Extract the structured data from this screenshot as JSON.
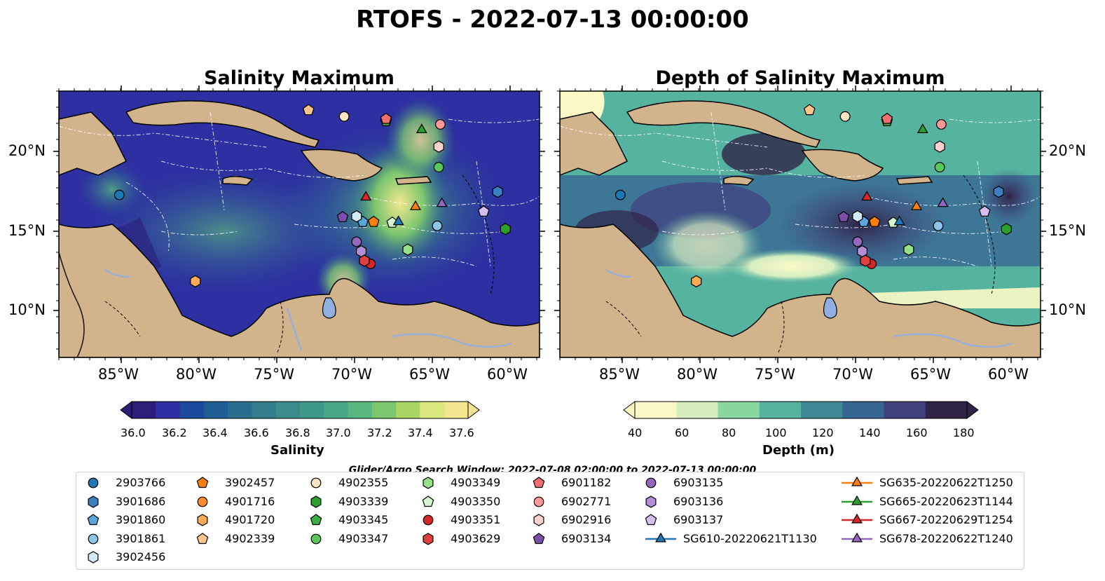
{
  "title": "RTOFS - 2022-07-13 00:00:00",
  "panels": [
    {
      "title": "Salinity Maximum",
      "colorbar": {
        "label": "Salinity",
        "ticks": [
          "36.0",
          "36.2",
          "36.4",
          "36.6",
          "36.8",
          "37.0",
          "37.2",
          "37.4",
          "37.6"
        ],
        "colors": [
          "#2c1e78",
          "#2e2fa0",
          "#1b4a9c",
          "#1f5e95",
          "#2a6e8e",
          "#337d8c",
          "#3a8b8a",
          "#3f998a",
          "#49a887",
          "#59b77f",
          "#7cc66d",
          "#aad665",
          "#dae77d",
          "#f2e78f"
        ],
        "extend": "both"
      }
    },
    {
      "title": "Depth of Salinity Maximum",
      "colorbar": {
        "label": "Depth (m)",
        "ticks": [
          "40",
          "60",
          "80",
          "100",
          "120",
          "140",
          "160",
          "180"
        ],
        "colors": [
          "#fdf9c7",
          "#d6eec0",
          "#8bd7a1",
          "#56b3a0",
          "#3f8a96",
          "#386693",
          "#413f7d",
          "#2f2446"
        ],
        "extend": "both"
      }
    }
  ],
  "axes": {
    "lon_labels": [
      "85°W",
      "80°W",
      "75°W",
      "70°W",
      "65°W",
      "60°W"
    ],
    "lat_labels": [
      "20°N",
      "15°N",
      "10°N"
    ],
    "lon_range": [
      -89,
      -58
    ],
    "lat_range": [
      7,
      23.8
    ]
  },
  "search_window": "Glider/Argo Search Window: 2022-07-08 02:00:00 to 2022-07-13 00:00:00",
  "legend": [
    {
      "label": "2903766",
      "marker": "circle",
      "color": "#1f77b4"
    },
    {
      "label": "3901686",
      "marker": "hexagon",
      "color": "#3b7fc0"
    },
    {
      "label": "3901860",
      "marker": "pentagon",
      "color": "#5aa6dc"
    },
    {
      "label": "3901861",
      "marker": "circle",
      "color": "#8cc4ea"
    },
    {
      "label": "3902456",
      "marker": "hexagon",
      "color": "#d3e9f7"
    },
    {
      "label": "3902457",
      "marker": "pentagon",
      "color": "#ff7f0e"
    },
    {
      "label": "4901716",
      "marker": "circle",
      "color": "#ff8c2a"
    },
    {
      "label": "4901720",
      "marker": "hexagon",
      "color": "#ffaa55"
    },
    {
      "label": "4902339",
      "marker": "pentagon",
      "color": "#ffc58a"
    },
    {
      "label": "4902355",
      "marker": "circle",
      "color": "#ffe4c4"
    },
    {
      "label": "4903339",
      "marker": "hexagon",
      "color": "#2ca02c"
    },
    {
      "label": "4903345",
      "marker": "pentagon",
      "color": "#3cb043"
    },
    {
      "label": "4903347",
      "marker": "circle",
      "color": "#5cc75a"
    },
    {
      "label": "4903349",
      "marker": "hexagon",
      "color": "#98df8a"
    },
    {
      "label": "4903350",
      "marker": "pentagon",
      "color": "#d4f5cf"
    },
    {
      "label": "4903351",
      "marker": "circle",
      "color": "#d62728"
    },
    {
      "label": "4903629",
      "marker": "hexagon",
      "color": "#e0403d"
    },
    {
      "label": "6901182",
      "marker": "pentagon",
      "color": "#f07070"
    },
    {
      "label": "6902771",
      "marker": "circle",
      "color": "#ff9896"
    },
    {
      "label": "6902916",
      "marker": "hexagon",
      "color": "#ffd1cf"
    },
    {
      "label": "6903134",
      "marker": "pentagon",
      "color": "#7b4ea8"
    },
    {
      "label": "6903135",
      "marker": "circle",
      "color": "#9467bd"
    },
    {
      "label": "6903136",
      "marker": "hexagon",
      "color": "#b28ed6"
    },
    {
      "label": "6903137",
      "marker": "pentagon",
      "color": "#d5bff0"
    },
    {
      "label": "SG610-20220621T1130",
      "marker": "triangle",
      "color": "#1f77b4",
      "line": true
    },
    {
      "label": "SG635-20220622T1250",
      "marker": "triangle",
      "color": "#ff7f0e",
      "line": true
    },
    {
      "label": "SG665-20220623T1144",
      "marker": "triangle",
      "color": "#2ca02c",
      "line": true
    },
    {
      "label": "SG667-20220629T1254",
      "marker": "triangle",
      "color": "#d62728",
      "line": true
    },
    {
      "label": "SG678-20220622T1240",
      "marker": "triangle",
      "color": "#9467bd",
      "line": true
    }
  ],
  "colors": {
    "land": "#d2b48c",
    "lake": "#8fb0e0",
    "river": "#9ab0d8"
  }
}
